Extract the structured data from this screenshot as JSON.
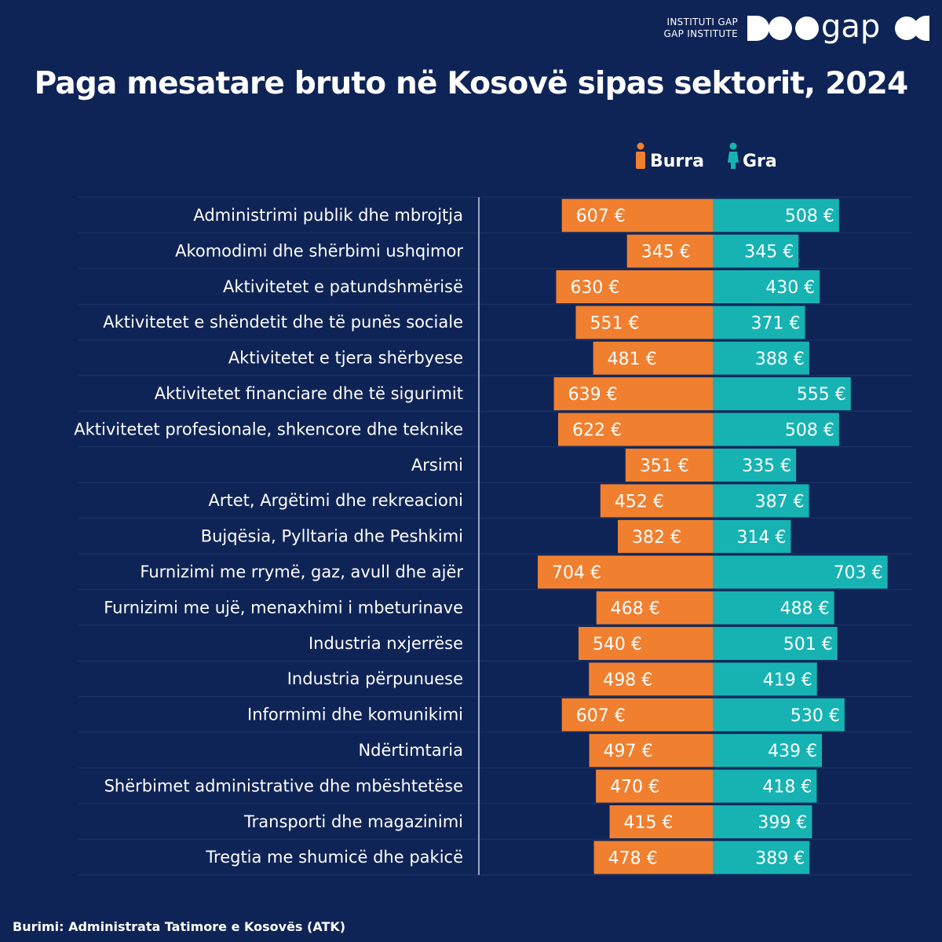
{
  "header": {
    "org_line1": "INSTITUTI GAP",
    "org_line2": "GAP INSTITUTE",
    "logo_word": "gap"
  },
  "colors": {
    "background": "#0f2456",
    "men": "#f07f2f",
    "women": "#17b3b3",
    "row_line": "#1c3466",
    "axis": "#c9d2e6"
  },
  "chart_data": {
    "type": "bar",
    "orientation": "horizontal-diverging",
    "title": "Paga mesatare bruto në Kosovë sipas sektorit, 2024",
    "unit": "€",
    "legend": {
      "placement": "top-right",
      "items": [
        {
          "name": "Burra",
          "icon": "man-icon",
          "color": "#f07f2f"
        },
        {
          "name": "Gra",
          "icon": "woman-icon",
          "color": "#17b3b3"
        }
      ]
    },
    "categories": [
      "Administrimi publik dhe mbrojtja",
      "Akomodimi dhe shërbimi ushqimor",
      "Aktivitetet e patundshmërisë",
      "Aktivitetet e shëndetit dhe të punës sociale",
      "Aktivitetet e tjera shërbyese",
      "Aktivitetet financiare dhe të sigurimit",
      "Aktivitetet profesionale, shkencore dhe teknike",
      "Arsimi",
      "Artet, Argëtimi dhe rekreacioni",
      "Bujqësia, Pylltaria dhe Peshkimi",
      "Furnizimi me rrymë, gaz, avull dhe ajër",
      "Furnizimi me ujë, menaxhimi i mbeturinave",
      "Industria nxjerrëse",
      "Industria përpunuese",
      "Informimi dhe komunikimi",
      "Ndërtimtaria",
      "Shërbimet administrative dhe mbështetëse",
      "Transporti dhe magazinimi",
      "Tregtia me shumicë dhe pakicë"
    ],
    "series": [
      {
        "name": "Burra",
        "values": [
          607,
          345,
          630,
          551,
          481,
          639,
          622,
          351,
          452,
          382,
          704,
          468,
          540,
          498,
          607,
          497,
          470,
          415,
          478
        ]
      },
      {
        "name": "Gra",
        "values": [
          508,
          345,
          430,
          371,
          388,
          555,
          508,
          335,
          387,
          314,
          703,
          488,
          501,
          419,
          530,
          439,
          418,
          399,
          389
        ]
      }
    ],
    "xlim": [
      0,
      704
    ],
    "grid": false
  },
  "footer": {
    "source": "Burimi: Administrata Tatimore e Kosovës (ATK)"
  }
}
